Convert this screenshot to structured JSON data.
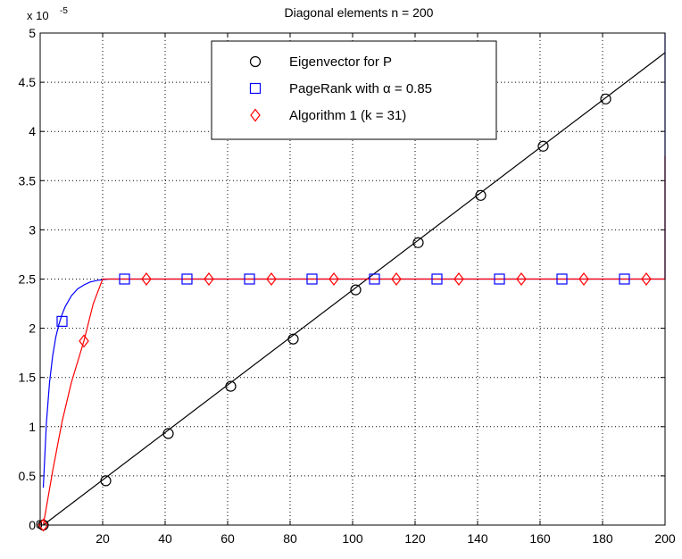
{
  "chart_data": {
    "type": "line",
    "title": "Diagonal elements n = 200",
    "xlabel": "",
    "ylabel": "",
    "y_exponent_label": "x 10",
    "y_exponent_power": "-5",
    "xlim": [
      0,
      200
    ],
    "ylim": [
      0,
      5
    ],
    "y_scale_factor": 1e-05,
    "x_ticks": [
      20,
      40,
      60,
      80,
      100,
      120,
      140,
      160,
      180,
      200
    ],
    "x_tick_labels": [
      "20",
      "40",
      "60",
      "80",
      "100",
      "120",
      "140",
      "160",
      "180",
      "200"
    ],
    "y_ticks": [
      0,
      0.5,
      1,
      1.5,
      2,
      2.5,
      3,
      3.5,
      4,
      4.5,
      5
    ],
    "y_tick_labels": [
      "0",
      "0.5",
      "1",
      "1.5",
      "2",
      "2.5",
      "3",
      "3.5",
      "4",
      "4.5",
      "5"
    ],
    "x_origin_label": "0",
    "grid": true,
    "legend_position": "top-center",
    "series": [
      {
        "name": "Eigenvector for P",
        "color": "#000000",
        "marker": "circle",
        "line": {
          "x": [
            1,
            200
          ],
          "y": [
            0,
            4.8
          ]
        },
        "markers": {
          "x": [
            1,
            21,
            41,
            61,
            81,
            101,
            121,
            141,
            161,
            181
          ],
          "y": [
            0,
            0.45,
            0.93,
            1.41,
            1.89,
            2.39,
            2.87,
            3.35,
            3.85,
            4.33
          ]
        }
      },
      {
        "name": "PageRank with α = 0.85",
        "color": "#0000ff",
        "marker": "square",
        "line": {
          "x": [
            1,
            2,
            3,
            4,
            5,
            6,
            7,
            8,
            10,
            12,
            14,
            16,
            18,
            20,
            22,
            200,
            200
          ],
          "y": [
            0.38,
            1.04,
            1.45,
            1.72,
            1.91,
            2.04,
            2.14,
            2.22,
            2.33,
            2.4,
            2.44,
            2.47,
            2.485,
            2.495,
            2.5,
            2.5,
            5.0
          ]
        },
        "markers": {
          "x": [
            7,
            27,
            47,
            67,
            87,
            107,
            127,
            147,
            167,
            187
          ],
          "y": [
            2.07,
            2.5,
            2.5,
            2.5,
            2.5,
            2.5,
            2.5,
            2.5,
            2.5,
            2.5
          ]
        }
      },
      {
        "name": "Algorithm 1 (k = 31)",
        "color": "#ff0000",
        "marker": "diamond",
        "line": {
          "x": [
            1,
            4,
            7,
            10,
            14,
            17,
            20,
            200,
            200
          ],
          "y": [
            0,
            0.55,
            1.05,
            1.45,
            1.87,
            2.25,
            2.5,
            2.5,
            3.75
          ]
        },
        "markers": {
          "x": [
            1,
            14,
            34,
            54,
            74,
            94,
            114,
            134,
            154,
            174,
            194
          ],
          "y": [
            0,
            1.87,
            2.5,
            2.5,
            2.5,
            2.5,
            2.5,
            2.5,
            2.5,
            2.5,
            2.5
          ]
        }
      }
    ]
  }
}
